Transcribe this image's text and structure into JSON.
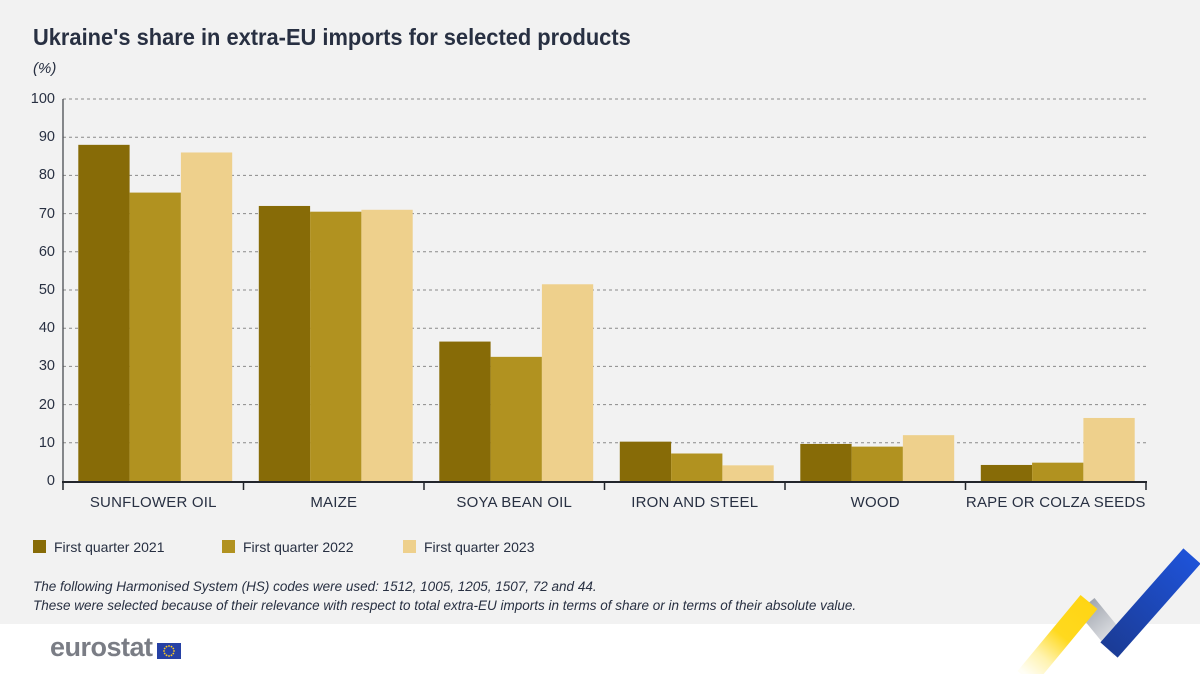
{
  "title": "Ukraine's share in extra-EU imports for selected products",
  "subtitle": "(%)",
  "chart_data": {
    "type": "bar",
    "categories": [
      "SUNFLOWER OIL",
      "MAIZE",
      "SOYA BEAN OIL",
      "IRON AND STEEL",
      "WOOD",
      "RAPE OR COLZA SEEDS"
    ],
    "series": [
      {
        "name": "First quarter 2021",
        "color": "#876B07",
        "values": [
          88,
          72,
          36.5,
          10.3,
          9.7,
          4.2
        ]
      },
      {
        "name": "First quarter 2022",
        "color": "#B19220",
        "values": [
          75.5,
          70.5,
          32.5,
          7.2,
          9,
          4.8
        ]
      },
      {
        "name": "First quarter 2023",
        "color": "#EED08C",
        "values": [
          86,
          71,
          51.5,
          4.1,
          12,
          16.5
        ]
      }
    ],
    "ylabel": "(%)",
    "ylim": [
      0,
      100
    ],
    "y_ticks": [
      0,
      10,
      20,
      30,
      40,
      50,
      60,
      70,
      80,
      90,
      100
    ],
    "grid": "horizontal-dashed",
    "legend_position": "bottom-left"
  },
  "footnotes": {
    "line1": "The following Harmonised System (HS) codes were used: 1512, 1005, 1205, 1507, 72 and 44.",
    "line2": "These were selected because of their relevance with respect to total extra-EU imports in terms of share or in terms of their absolute value."
  },
  "footer": {
    "logo_text": "eurostat"
  },
  "colors": {
    "background": "#F2F2F2",
    "footer_background": "#FFFFFF",
    "text": "#283042",
    "axis": "#23262C",
    "gridline": "#8A8A8A",
    "logo_gray": "#7A7D85",
    "flag_blue": "#2641A5",
    "flag_star_yellow": "#FFCC21",
    "decor_yellow": "#FFD514",
    "decor_gray": "#A2A7B0",
    "decor_blue": "#1E52D6"
  }
}
